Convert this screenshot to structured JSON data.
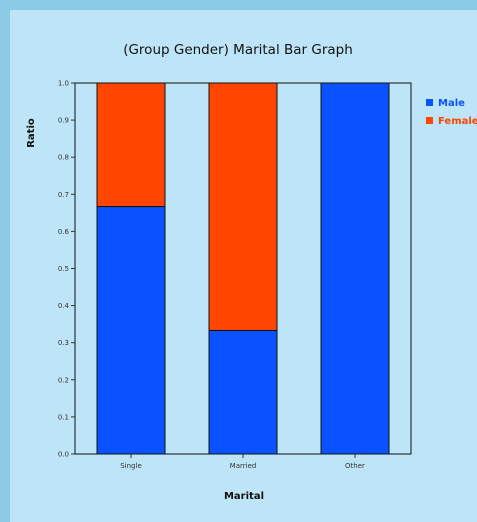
{
  "chart_data": {
    "type": "bar",
    "stacked": true,
    "title": "(Group Gender) Marital Bar Graph",
    "xlabel": "Marital",
    "ylabel": "Ratio",
    "categories": [
      "Single",
      "Married",
      "Other"
    ],
    "series": [
      {
        "name": "Male",
        "color": "#0a52ff",
        "values": [
          0.667,
          0.333,
          1.0
        ]
      },
      {
        "name": "Female",
        "color": "#ff4500",
        "values": [
          0.333,
          0.667,
          0.0
        ]
      }
    ],
    "ylim": [
      0,
      1
    ],
    "yticks": [
      "0.0",
      "0.1",
      "0.2",
      "0.3",
      "0.4",
      "0.5",
      "0.6",
      "0.7",
      "0.8",
      "0.9",
      "1.0"
    ],
    "grid": false,
    "legend_position": "top-right"
  }
}
